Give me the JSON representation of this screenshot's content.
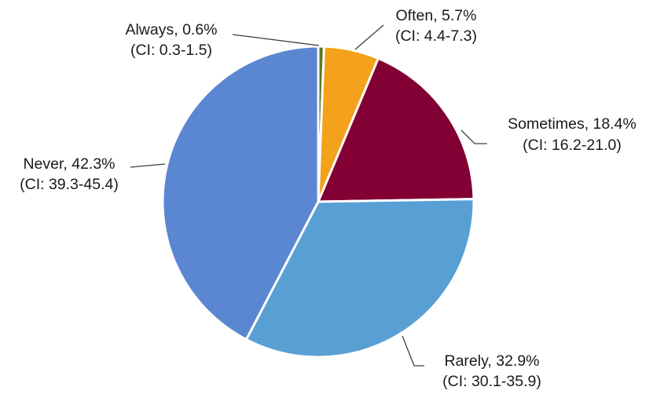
{
  "chart_data": {
    "type": "pie",
    "start_angle_deg": 0,
    "direction": "clockwise",
    "slices": [
      {
        "label": "Always",
        "value": 0.6,
        "value_text": "Always, 0.6%",
        "ci_text": "(CI: 0.3-1.5)",
        "color": "#5a7a1e"
      },
      {
        "label": "Often",
        "value": 5.7,
        "value_text": "Often, 5.7%",
        "ci_text": "(CI: 4.4-7.3)",
        "color": "#f4a11b"
      },
      {
        "label": "Sometimes",
        "value": 18.4,
        "value_text": "Sometimes, 18.4%",
        "ci_text": "(CI: 16.2-21.0)",
        "color": "#820033"
      },
      {
        "label": "Rarely",
        "value": 32.9,
        "value_text": "Rarely, 32.9%",
        "ci_text": "(CI: 30.1-35.9)",
        "color": "#58a0d4"
      },
      {
        "label": "Never",
        "value": 42.3,
        "value_text": "Never, 42.3%",
        "ci_text": "(CI: 39.3-45.4)",
        "color": "#5b86d1"
      }
    ]
  }
}
